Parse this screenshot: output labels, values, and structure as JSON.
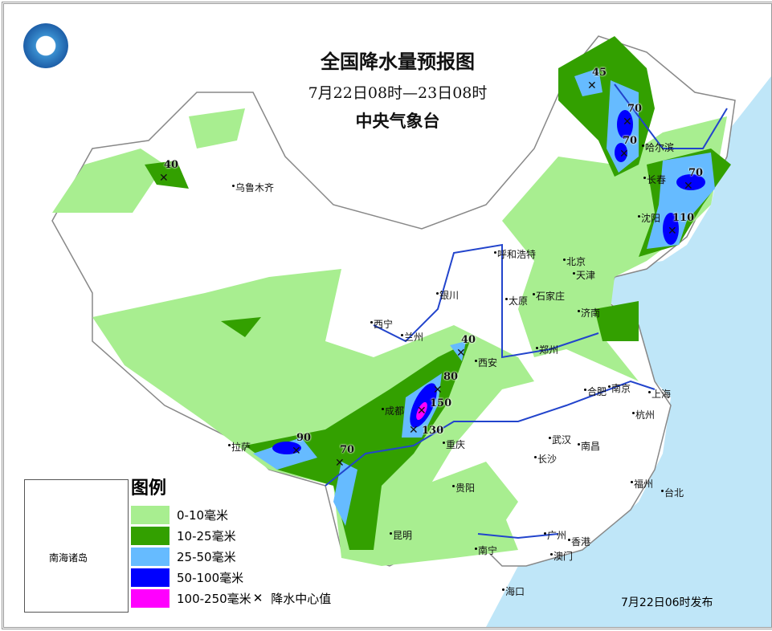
{
  "title": "全国降水量预报图",
  "period": "7月22日08时—23日08时",
  "issuer": "中央气象台",
  "issued": "7月22日06时发布",
  "logo": "中央气象台",
  "legend": {
    "title": "图例",
    "items": [
      {
        "label": "0-10毫米",
        "color": "#a8ee90"
      },
      {
        "label": "10-25毫米",
        "color": "#33a000"
      },
      {
        "label": "25-50毫米",
        "color": "#66bbff"
      },
      {
        "label": "50-100毫米",
        "color": "#0000fe"
      },
      {
        "label": "100-250毫米",
        "color": "#ff00fe"
      }
    ],
    "center_label": "降水中心值",
    "center_icon": "x-mark-icon"
  },
  "inset_label": "南海诸岛",
  "cities": [
    "乌鲁木齐",
    "呼和浩特",
    "银川",
    "北京",
    "天津",
    "石家庄",
    "太原",
    "济南",
    "西宁",
    "兰州",
    "西安",
    "郑州",
    "哈尔滨",
    "长春",
    "沈阳",
    "拉萨",
    "成都",
    "重庆",
    "武汉",
    "合肥",
    "南京",
    "上海",
    "杭州",
    "南昌",
    "长沙",
    "贵阳",
    "昆明",
    "福州",
    "台北",
    "南宁",
    "广州",
    "香港",
    "澳门",
    "海口"
  ],
  "centers": [
    45,
    70,
    70,
    70,
    110,
    40,
    40,
    80,
    150,
    130,
    90,
    70
  ],
  "colors": {
    "sea": "#bfe6f8",
    "river": "#2244cc",
    "border": "#888888"
  }
}
